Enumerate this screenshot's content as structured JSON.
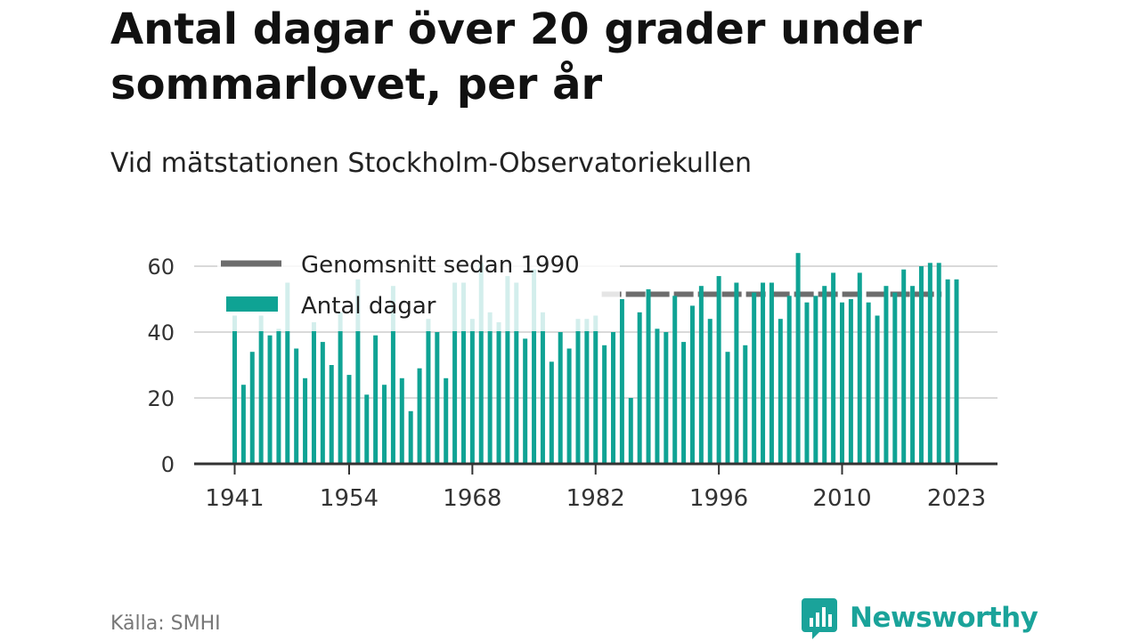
{
  "title": "Antal dagar över 20 grader under sommarlovet, per år",
  "subtitle": "Vid mätstationen Stockholm-Observatoriekullen",
  "source": "Källa: SMHI",
  "brand": "Newsworthy",
  "colors": {
    "bar": "#0fa394",
    "bar_faded": "#d3eeeb",
    "average_line": "#6d6d6d",
    "grid": "#d9d9d9",
    "axis": "#333333",
    "brand": "#1aa39a"
  },
  "chart_data": {
    "type": "bar",
    "title": "Antal dagar över 20 grader under sommarlovet, per år",
    "subtitle": "Vid mätstationen Stockholm-Observatoriekullen",
    "xlabel": "",
    "ylabel": "",
    "ylim": [
      0,
      68
    ],
    "yticks": [
      0,
      20,
      40,
      60
    ],
    "xticks": [
      1941,
      1954,
      1968,
      1982,
      1996,
      2010,
      2023
    ],
    "xticklabels": [
      "1941",
      "1954",
      "1968",
      "1982",
      "1996",
      "2010",
      "2023"
    ],
    "grid": true,
    "legend_position": "top-left",
    "legend": [
      "Genomsnitt sedan 1990",
      "Antal dagar"
    ],
    "series": [
      {
        "name": "Antal dagar",
        "x": [
          1941,
          1942,
          1943,
          1944,
          1945,
          1946,
          1947,
          1948,
          1949,
          1950,
          1951,
          1952,
          1953,
          1954,
          1955,
          1956,
          1957,
          1958,
          1959,
          1960,
          1961,
          1962,
          1963,
          1964,
          1965,
          1966,
          1967,
          1968,
          1969,
          1970,
          1971,
          1972,
          1973,
          1974,
          1975,
          1976,
          1977,
          1978,
          1979,
          1980,
          1981,
          1982,
          1983,
          1984,
          1985,
          1986,
          1987,
          1988,
          1989,
          1990,
          1991,
          1992,
          1993,
          1994,
          1995,
          1996,
          1997,
          1998,
          1999,
          2000,
          2001,
          2002,
          2003,
          2004,
          2005,
          2006,
          2007,
          2008,
          2009,
          2010,
          2011,
          2012,
          2013,
          2014,
          2015,
          2016,
          2017,
          2018,
          2019,
          2020,
          2021,
          2022,
          2023
        ],
        "values": [
          45,
          24,
          34,
          45,
          39,
          41,
          55,
          35,
          26,
          43,
          37,
          30,
          46,
          27,
          56,
          21,
          39,
          24,
          54,
          26,
          16,
          29,
          44,
          40,
          26,
          55,
          55,
          44,
          61,
          46,
          43,
          57,
          55,
          38,
          59,
          46,
          31,
          40,
          35,
          44,
          44,
          45,
          36,
          40,
          50,
          20,
          46,
          53,
          41,
          40,
          51,
          37,
          48,
          54,
          44,
          57,
          34,
          55,
          36,
          52,
          55,
          55,
          44,
          51,
          64,
          49,
          51,
          54,
          58,
          49,
          50,
          58,
          49,
          45,
          54,
          52,
          59,
          54,
          60,
          61,
          61,
          56,
          56
        ]
      },
      {
        "name": "Genomsnitt sedan 1990",
        "x_range": [
          1983,
          2021
        ],
        "value": 51.5
      }
    ]
  }
}
